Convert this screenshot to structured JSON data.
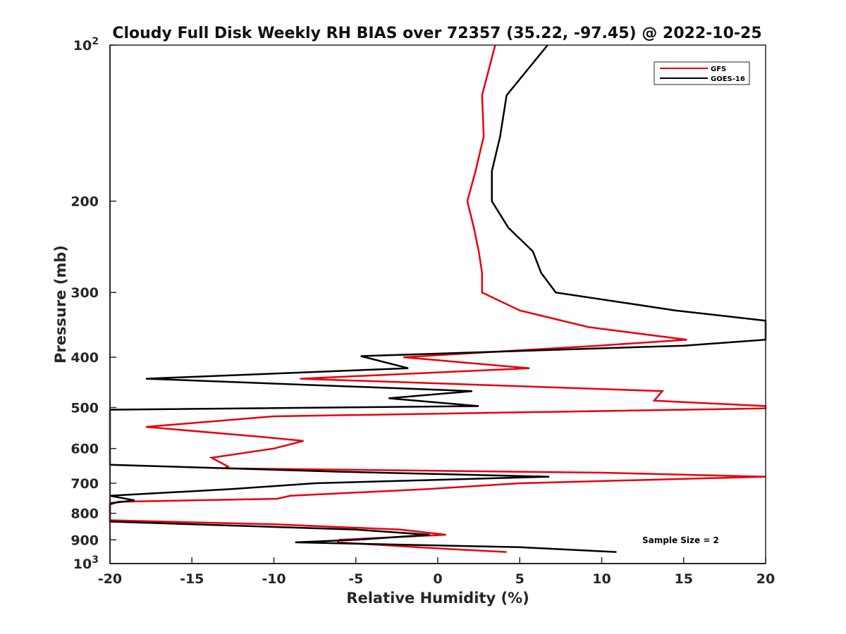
{
  "chart_data": {
    "type": "line",
    "title": "Cloudy Full Disk Weekly RH BIAS over 72357 (35.22, -97.45) @ 2022-10-25",
    "xlabel": "Relative Humidity (%)",
    "ylabel": "Pressure (mb)",
    "xlim": [
      -20,
      20
    ],
    "ylim": [
      100,
      1000
    ],
    "y_scale": "log",
    "y_reversed": true,
    "x_ticks": [
      "-20",
      "-15",
      "-10",
      "-5",
      "0",
      "5",
      "10",
      "15",
      "20"
    ],
    "y_ticks": [
      {
        "value": 100,
        "base": "10",
        "exp": "2"
      },
      {
        "value": 200,
        "label": "200"
      },
      {
        "value": 300,
        "label": "300"
      },
      {
        "value": 400,
        "label": "400"
      },
      {
        "value": 500,
        "label": "500"
      },
      {
        "value": 600,
        "label": "600"
      },
      {
        "value": 700,
        "label": "700"
      },
      {
        "value": 800,
        "label": "800"
      },
      {
        "value": 900,
        "label": "900"
      },
      {
        "value": 1000,
        "base": "10",
        "exp": "3"
      }
    ],
    "grid": false,
    "legend_position": "top-right",
    "series": [
      {
        "name": "GFS",
        "color": "#e8000b",
        "points": [
          [
            3.5,
            100
          ],
          [
            2.7,
            125
          ],
          [
            2.8,
            150
          ],
          [
            2.3,
            175
          ],
          [
            1.8,
            200
          ],
          [
            2.2,
            225
          ],
          [
            2.5,
            250
          ],
          [
            2.7,
            275
          ],
          [
            2.7,
            300
          ],
          [
            5,
            325
          ],
          [
            9.2,
            350
          ],
          [
            15.2,
            370
          ],
          [
            9.8,
            380
          ],
          [
            -2.1,
            400
          ],
          [
            5.6,
            420
          ],
          [
            -8.4,
            440
          ],
          [
            13.7,
            465
          ],
          [
            13.2,
            485
          ],
          [
            20,
            497
          ],
          [
            20,
            502
          ],
          [
            -10,
            520
          ],
          [
            -17.8,
            545
          ],
          [
            -10.7,
            570
          ],
          [
            -8.2,
            580
          ],
          [
            -10,
            600
          ],
          [
            -13.8,
            625
          ],
          [
            -12.8,
            650
          ],
          [
            -13,
            655
          ],
          [
            10,
            668
          ],
          [
            20,
            680
          ],
          [
            20,
            680
          ],
          [
            5,
            700
          ],
          [
            -0.5,
            718
          ],
          [
            -9,
            740
          ],
          [
            -9.8,
            750
          ],
          [
            -19.5,
            760
          ],
          [
            -20,
            770
          ],
          [
            -20,
            825
          ],
          [
            -10,
            840
          ],
          [
            -2.3,
            860
          ],
          [
            0.5,
            880
          ],
          [
            -6,
            900
          ],
          [
            -6.1,
            910
          ],
          [
            0,
            935
          ],
          [
            4.2,
            950
          ]
        ]
      },
      {
        "name": "GOES-16",
        "color": "#000000",
        "points": [
          [
            6.7,
            100
          ],
          [
            4.2,
            125
          ],
          [
            3.8,
            150
          ],
          [
            3.3,
            175
          ],
          [
            3.3,
            200
          ],
          [
            4.3,
            225
          ],
          [
            5.8,
            250
          ],
          [
            6.3,
            275
          ],
          [
            7.2,
            300
          ],
          [
            14.5,
            325
          ],
          [
            20,
            340
          ],
          [
            20,
            370
          ],
          [
            15,
            380
          ],
          [
            -4.7,
            398
          ],
          [
            -1.8,
            420
          ],
          [
            -17.8,
            440
          ],
          [
            2.1,
            465
          ],
          [
            -3,
            480
          ],
          [
            2.5,
            497
          ],
          [
            -20,
            505
          ],
          [
            -20,
            645
          ],
          [
            -6,
            665
          ],
          [
            6.8,
            680
          ],
          [
            -7.5,
            700
          ],
          [
            -12.5,
            718
          ],
          [
            -20,
            740
          ],
          [
            -18.5,
            755
          ],
          [
            -20,
            765
          ],
          [
            -20,
            830
          ],
          [
            -5,
            860
          ],
          [
            -0.5,
            880
          ],
          [
            -5,
            900
          ],
          [
            -8.7,
            910
          ],
          [
            5,
            930
          ],
          [
            10.9,
            950
          ]
        ]
      }
    ]
  },
  "annotation": "Sample Size = 2"
}
